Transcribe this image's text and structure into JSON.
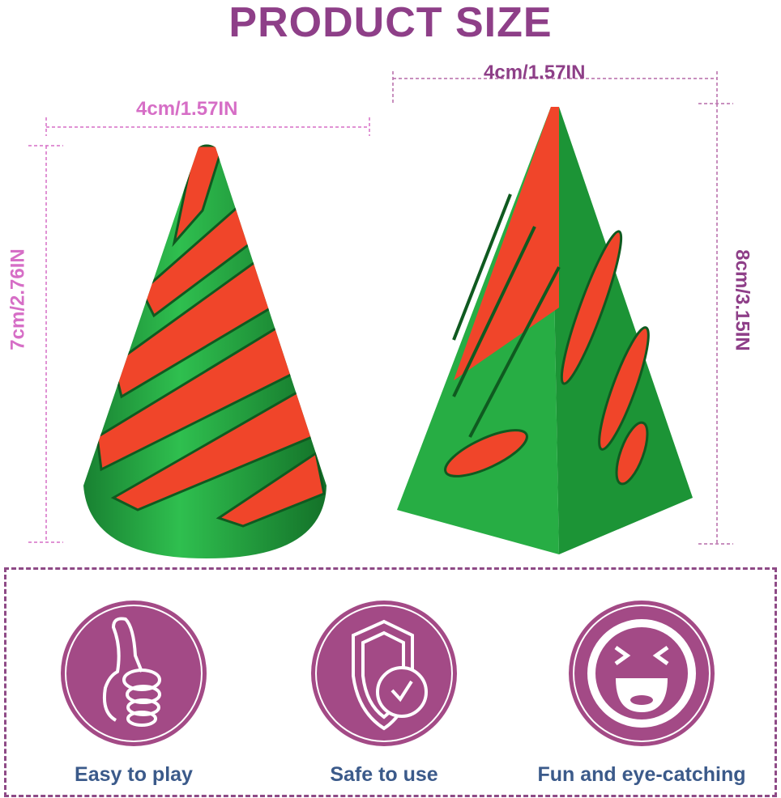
{
  "title": "PRODUCT SIZE",
  "products": [
    {
      "name": "cone",
      "width_label": "4cm/1.57IN",
      "height_label": "7cm/2.76IN"
    },
    {
      "name": "pyramid",
      "width_label": "4cm/1.57IN",
      "height_label": "8cm/3.15IN"
    }
  ],
  "features": [
    {
      "label": "Easy to play",
      "icon": "thumbs-up-icon"
    },
    {
      "label": "Safe to use",
      "icon": "shield-check-icon"
    },
    {
      "label": "Fun and eye-catching",
      "icon": "laughing-face-icon"
    }
  ],
  "colors": {
    "title": "#8e3f88",
    "dimension_pink": "#d66ec6",
    "icon_circle": "#a34a86",
    "feature_text": "#3b5a8a",
    "red": "#f0452a",
    "green": "#1f9a3a"
  }
}
